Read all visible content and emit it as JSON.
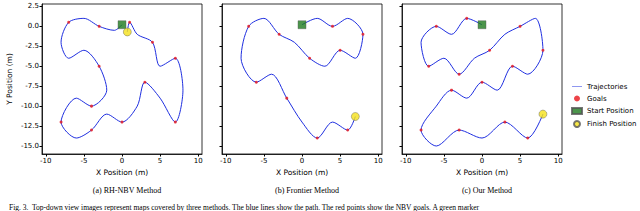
{
  "chart_data": [
    {
      "type": "line",
      "title": "(a) RH-NBV Method",
      "xlabel": "X Position (m)",
      "ylabel": "Y Position (m)",
      "xlim": [
        -10.5,
        10.5
      ],
      "xticks": [
        -10,
        -5,
        0,
        5,
        10
      ],
      "ylim": [
        -16,
        2.8
      ],
      "yticks": [
        {
          "value": 2.5,
          "label": "2.5"
        },
        {
          "value": 0,
          "label": "0.0"
        },
        {
          "value": -2.5,
          "label": "-2.5"
        },
        {
          "value": -5,
          "label": "-5.0"
        },
        {
          "value": -7.5,
          "label": "-7.5"
        },
        {
          "value": -10,
          "label": "-10.0"
        },
        {
          "value": -12.5,
          "label": "-12.5"
        },
        {
          "value": -15,
          "label": "-15.0"
        }
      ],
      "tick_labels": true,
      "series": [
        {
          "name": "Trajectories",
          "type": "line",
          "color": "#1f2fe0",
          "x": [
            0,
            -1,
            -3,
            -5,
            -7,
            -8,
            -7,
            -5,
            -3,
            -2,
            -4,
            -6,
            -8,
            -6,
            -4,
            -2,
            0,
            2,
            3,
            5,
            7,
            8,
            7,
            5,
            4,
            2,
            1,
            0.7
          ],
          "values": [
            0.2,
            -0.5,
            0,
            1,
            0.5,
            -2,
            -4,
            -3,
            -5,
            -8,
            -10,
            -9,
            -12,
            -14,
            -13,
            -11,
            -12,
            -10,
            -7,
            -9,
            -12,
            -8,
            -4,
            -5,
            -2,
            -1,
            0.5,
            -0.7
          ]
        },
        {
          "name": "Goals",
          "type": "scatter",
          "marker": "circle",
          "color": "#e8141a",
          "x": [
            -3,
            -7,
            -3,
            -4,
            -8,
            -4,
            0,
            3,
            7,
            7,
            4,
            1
          ],
          "values": [
            0,
            0.5,
            -5,
            -10,
            -12,
            -13,
            -12,
            -7,
            -12,
            -4,
            -2,
            0.5
          ]
        },
        {
          "name": "Start Position",
          "type": "scatter",
          "marker": "square",
          "color": "#1e7a1e",
          "x": [
            0
          ],
          "values": [
            0.2
          ]
        },
        {
          "name": "Finish Position",
          "type": "scatter",
          "marker": "circle",
          "color": "#f5e11a",
          "x": [
            0.7
          ],
          "values": [
            -0.7
          ]
        }
      ]
    },
    {
      "type": "line",
      "title": "(b) Frontier Method",
      "xlabel": "X Position (m)",
      "xlim": [
        -10.5,
        10.5
      ],
      "xticks": [
        -10,
        -5,
        0,
        5,
        10
      ],
      "ylim": [
        -16,
        2.8
      ],
      "yticks": [
        2.5,
        0,
        -2.5,
        -5,
        -7.5,
        -10,
        -12.5,
        -15
      ],
      "tick_labels": "x",
      "series": [
        {
          "name": "Trajectories",
          "type": "line",
          "color": "#1f2fe0",
          "x": [
            0,
            2,
            4,
            6,
            8,
            7,
            5,
            3,
            1,
            -1,
            -3,
            -5,
            -7,
            -8,
            -6,
            -4,
            -2,
            0,
            2,
            4,
            6,
            7
          ],
          "values": [
            0.2,
            1,
            0,
            1,
            -1,
            -4,
            -3,
            -5,
            -4,
            -2,
            -1,
            1,
            0,
            -4,
            -7,
            -6,
            -9,
            -12,
            -14,
            -12,
            -13,
            -11.3
          ]
        },
        {
          "name": "Goals",
          "type": "scatter",
          "marker": "circle",
          "color": "#e8141a",
          "x": [
            4,
            8,
            5,
            1,
            -3,
            -7,
            -6,
            -2,
            2,
            6
          ],
          "values": [
            0,
            -1,
            -3,
            -4,
            -1,
            0,
            -7,
            -9,
            -14,
            -13
          ]
        },
        {
          "name": "Start Position",
          "type": "scatter",
          "marker": "square",
          "color": "#1e7a1e",
          "x": [
            0
          ],
          "values": [
            0.2
          ]
        },
        {
          "name": "Finish Position",
          "type": "scatter",
          "marker": "circle",
          "color": "#f5e11a",
          "x": [
            7
          ],
          "values": [
            -11.3
          ]
        }
      ]
    },
    {
      "type": "line",
      "title": "(c) Our Method",
      "xlabel": "X Position (m)",
      "xlim": [
        -10.5,
        10.5
      ],
      "xticks": [
        -10,
        -5,
        0,
        5,
        10
      ],
      "ylim": [
        -16,
        2.8
      ],
      "yticks": [
        2.5,
        0,
        -2.5,
        -5,
        -7.5,
        -10,
        -12.5,
        -15
      ],
      "tick_labels": "x",
      "legend": "right",
      "series": [
        {
          "name": "Trajectories",
          "type": "line",
          "color": "#1f2fe0",
          "x": [
            0,
            -2,
            -4,
            -6,
            -8,
            -7,
            -5,
            -3,
            -1,
            1,
            3,
            5,
            7,
            8,
            6,
            4,
            2,
            0,
            -2,
            -4,
            -6,
            -8,
            -6,
            -3,
            0,
            3,
            6,
            8
          ],
          "values": [
            0.2,
            1,
            -1,
            0,
            -2,
            -5,
            -4,
            -6,
            -4,
            -3,
            -1,
            0,
            1,
            -3,
            -6,
            -5,
            -8,
            -7,
            -9,
            -8,
            -10,
            -13,
            -15,
            -13,
            -14,
            -12,
            -14,
            -11
          ]
        },
        {
          "name": "Goals",
          "type": "scatter",
          "marker": "circle",
          "color": "#e8141a",
          "x": [
            -2,
            -6,
            -7,
            -3,
            1,
            5,
            8,
            4,
            0,
            -4,
            -8,
            -3,
            3,
            6
          ],
          "values": [
            1,
            0,
            -5,
            -6,
            -3,
            0,
            -3,
            -5,
            -7,
            -8,
            -13,
            -13,
            -12,
            -14
          ]
        },
        {
          "name": "Start Position",
          "type": "scatter",
          "marker": "square",
          "color": "#1e7a1e",
          "x": [
            0
          ],
          "values": [
            0.2
          ]
        },
        {
          "name": "Finish Position",
          "type": "scatter",
          "marker": "circle",
          "color": "#f5e11a",
          "x": [
            8
          ],
          "values": [
            -11
          ]
        }
      ]
    }
  ],
  "caption": "Fig. 3.  Top-down view images represent maps covered by three methods. The blue lines show the path. The red points show the NBV goals. A green marker"
}
